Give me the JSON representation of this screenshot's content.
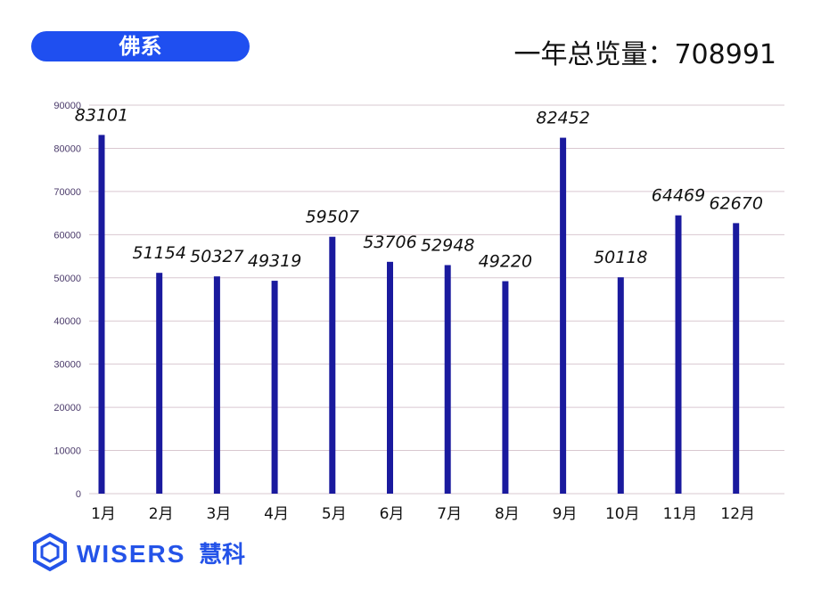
{
  "header": {
    "title": "佛系",
    "total_label": "一年总览量：",
    "total_value": "708991"
  },
  "colors": {
    "accent": "#1f4ff0",
    "bar": "#1a1a9e",
    "grid": "#d9c8d0",
    "axis_text": "#4a3a6a",
    "logo": "#2453e8"
  },
  "logo": {
    "brand": "WISERS",
    "brand_cn": "慧科",
    "icon": "hexagon-logo-icon"
  },
  "chart_data": {
    "type": "bar",
    "categories": [
      "1月",
      "2月",
      "3月",
      "4月",
      "5月",
      "6月",
      "7月",
      "8月",
      "9月",
      "10月",
      "11月",
      "12月"
    ],
    "values": [
      83101,
      51154,
      50327,
      49319,
      59507,
      53706,
      52948,
      49220,
      82452,
      50118,
      64469,
      62670
    ],
    "ylim": [
      0,
      90000
    ],
    "yticks": [
      0,
      10000,
      20000,
      30000,
      40000,
      50000,
      60000,
      70000,
      80000,
      90000
    ],
    "grid": true,
    "data_labels": true
  }
}
